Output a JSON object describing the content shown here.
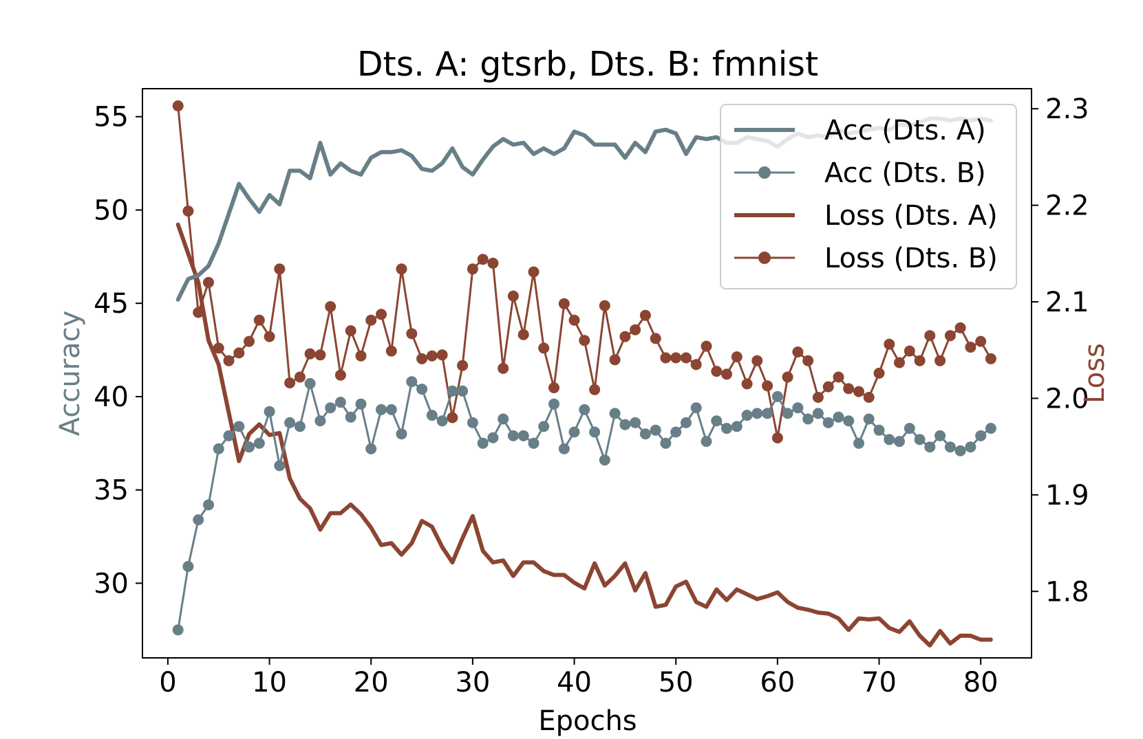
{
  "chart_data": {
    "type": "line",
    "title": "Dts. A: gtsrb, Dts. B: fmnist",
    "xlabel": "Epochs",
    "ylabel_left": "Accuracy",
    "ylabel_right": "Loss",
    "xlim": [
      -2.5,
      85
    ],
    "ylim_left": [
      26.0,
      56.5
    ],
    "ylim_right": [
      1.7311,
      2.3208
    ],
    "xticks": [
      0,
      10,
      20,
      30,
      40,
      50,
      60,
      70,
      80
    ],
    "yticks_left": [
      30,
      35,
      40,
      45,
      50,
      55
    ],
    "yticks_right": [
      1.8,
      1.9,
      2.0,
      2.1,
      2.2,
      2.3
    ],
    "ytick_labels_right": [
      "1.8",
      "1.9",
      "2.0",
      "2.1",
      "2.2",
      "2.3"
    ],
    "grid": false,
    "legend_position": "top-right",
    "colors": {
      "accuracy": "#687f88",
      "loss": "#8b4532",
      "axis": "#000000"
    },
    "series": [
      {
        "name": "Acc (Dts. A)",
        "axis": "left",
        "style": "thick-line",
        "color": "#687f88",
        "values": [
          45.2,
          46.3,
          46.5,
          47.0,
          48.2,
          49.8,
          51.4,
          50.6,
          49.9,
          50.8,
          50.3,
          52.1,
          52.1,
          51.7,
          53.6,
          51.9,
          52.5,
          52.1,
          51.9,
          52.8,
          53.1,
          53.1,
          53.2,
          52.9,
          52.2,
          52.1,
          52.5,
          53.3,
          52.3,
          51.9,
          52.7,
          53.4,
          53.8,
          53.5,
          53.6,
          53.0,
          53.3,
          53.0,
          53.3,
          54.2,
          54.0,
          53.5,
          53.5,
          53.5,
          52.8,
          53.6,
          53.1,
          54.2,
          54.3,
          54.1,
          53.0,
          53.9,
          53.8,
          53.9,
          53.6,
          53.6,
          53.9,
          53.8,
          53.7,
          53.4,
          53.8,
          54.1,
          53.9,
          54.0,
          53.9,
          54.3,
          54.1,
          54.2,
          54.3,
          54.4,
          54.3,
          54.6,
          54.5,
          54.7,
          54.9,
          54.9,
          54.8,
          54.9,
          54.8,
          54.9,
          54.8
        ]
      },
      {
        "name": "Acc (Dts. B)",
        "axis": "left",
        "style": "line-dots",
        "color": "#687f88",
        "values": [
          27.5,
          30.9,
          33.4,
          34.2,
          37.2,
          37.9,
          38.4,
          37.3,
          37.5,
          39.2,
          36.3,
          38.6,
          38.4,
          40.7,
          38.7,
          39.4,
          39.7,
          38.9,
          39.6,
          37.2,
          39.3,
          39.3,
          38.0,
          40.8,
          40.4,
          39.0,
          38.7,
          40.3,
          40.3,
          38.6,
          37.5,
          37.8,
          38.8,
          37.9,
          37.9,
          37.5,
          38.4,
          39.6,
          37.2,
          38.1,
          39.3,
          38.1,
          36.6,
          39.1,
          38.5,
          38.6,
          38.0,
          38.2,
          37.5,
          38.1,
          38.6,
          39.4,
          37.6,
          38.7,
          38.3,
          38.4,
          39.0,
          39.1,
          39.1,
          40.0,
          39.1,
          39.4,
          38.8,
          39.1,
          38.6,
          38.9,
          38.7,
          37.5,
          38.8,
          38.2,
          37.7,
          37.6,
          38.3,
          37.7,
          37.3,
          37.9,
          37.3,
          37.1,
          37.3,
          37.9,
          38.3
        ]
      },
      {
        "name": "Loss (Dts. A)",
        "axis": "right",
        "style": "thick-line",
        "color": "#8b4532",
        "values": [
          2.18,
          2.15,
          2.12,
          2.06,
          2.035,
          1.985,
          1.935,
          1.963,
          1.973,
          1.962,
          1.964,
          1.917,
          1.896,
          1.886,
          1.864,
          1.881,
          1.881,
          1.89,
          1.88,
          1.866,
          1.848,
          1.85,
          1.838,
          1.85,
          1.873,
          1.867,
          1.846,
          1.83,
          1.855,
          1.878,
          1.842,
          1.83,
          1.832,
          1.816,
          1.83,
          1.83,
          1.821,
          1.817,
          1.817,
          1.809,
          1.803,
          1.829,
          1.806,
          1.816,
          1.829,
          1.801,
          1.819,
          1.784,
          1.786,
          1.805,
          1.81,
          1.789,
          1.784,
          1.802,
          1.791,
          1.802,
          1.797,
          1.792,
          1.795,
          1.799,
          1.789,
          1.783,
          1.781,
          1.778,
          1.777,
          1.772,
          1.76,
          1.772,
          1.771,
          1.772,
          1.762,
          1.758,
          1.769,
          1.754,
          1.744,
          1.759,
          1.746,
          1.754,
          1.754,
          1.75,
          1.75
        ]
      },
      {
        "name": "Loss (Dts. B)",
        "axis": "right",
        "style": "line-dots",
        "color": "#8b4532",
        "values": [
          2.303,
          2.194,
          2.089,
          2.12,
          2.052,
          2.039,
          2.047,
          2.059,
          2.081,
          2.064,
          2.134,
          2.016,
          2.022,
          2.046,
          2.045,
          2.095,
          2.024,
          2.07,
          2.044,
          2.081,
          2.087,
          2.049,
          2.134,
          2.067,
          2.041,
          2.044,
          2.045,
          1.98,
          2.034,
          2.134,
          2.144,
          2.14,
          2.031,
          2.106,
          2.066,
          2.131,
          2.052,
          2.011,
          2.098,
          2.081,
          2.06,
          2.009,
          2.096,
          2.04,
          2.064,
          2.071,
          2.086,
          2.062,
          2.042,
          2.042,
          2.042,
          2.035,
          2.054,
          2.028,
          2.025,
          2.043,
          2.015,
          2.039,
          2.013,
          1.959,
          2.022,
          2.048,
          2.039,
          2.001,
          2.012,
          2.022,
          2.01,
          2.007,
          2.001,
          2.026,
          2.056,
          2.037,
          2.049,
          2.039,
          2.065,
          2.039,
          2.065,
          2.073,
          2.053,
          2.059,
          2.041
        ]
      }
    ]
  }
}
